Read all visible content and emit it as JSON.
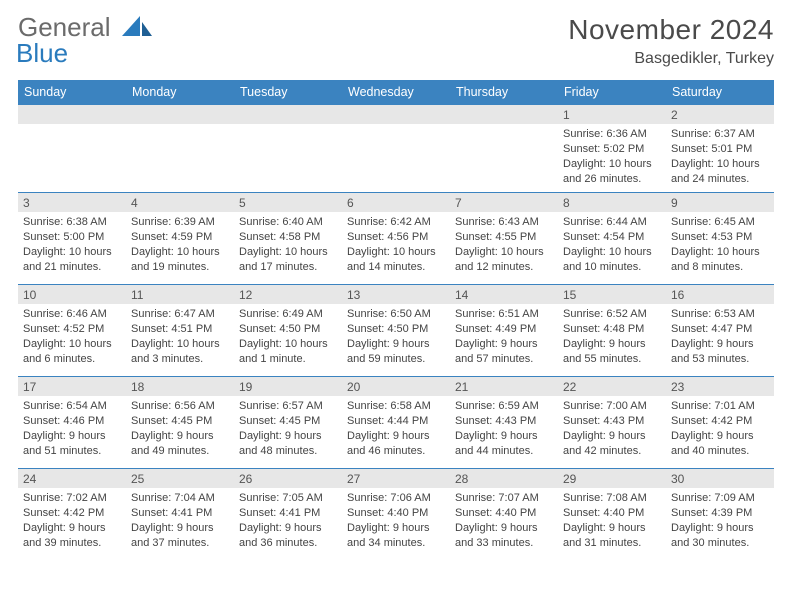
{
  "brand": {
    "word1": "General",
    "word2": "Blue"
  },
  "title": "November 2024",
  "location": "Basgedikler, Turkey",
  "colors": {
    "header_bar": "#3b83c0",
    "daynum_bg": "#e7e7e7",
    "rule": "#3b83c0",
    "text": "#444444",
    "title_text": "#4a4a4a",
    "brand_gray": "#6b6b6b",
    "brand_blue": "#2a7bbd"
  },
  "day_names": [
    "Sunday",
    "Monday",
    "Tuesday",
    "Wednesday",
    "Thursday",
    "Friday",
    "Saturday"
  ],
  "weeks": [
    [
      null,
      null,
      null,
      null,
      null,
      {
        "n": "1",
        "sr": "Sunrise: 6:36 AM",
        "ss": "Sunset: 5:02 PM",
        "dl": "Daylight: 10 hours and 26 minutes."
      },
      {
        "n": "2",
        "sr": "Sunrise: 6:37 AM",
        "ss": "Sunset: 5:01 PM",
        "dl": "Daylight: 10 hours and 24 minutes."
      }
    ],
    [
      {
        "n": "3",
        "sr": "Sunrise: 6:38 AM",
        "ss": "Sunset: 5:00 PM",
        "dl": "Daylight: 10 hours and 21 minutes."
      },
      {
        "n": "4",
        "sr": "Sunrise: 6:39 AM",
        "ss": "Sunset: 4:59 PM",
        "dl": "Daylight: 10 hours and 19 minutes."
      },
      {
        "n": "5",
        "sr": "Sunrise: 6:40 AM",
        "ss": "Sunset: 4:58 PM",
        "dl": "Daylight: 10 hours and 17 minutes."
      },
      {
        "n": "6",
        "sr": "Sunrise: 6:42 AM",
        "ss": "Sunset: 4:56 PM",
        "dl": "Daylight: 10 hours and 14 minutes."
      },
      {
        "n": "7",
        "sr": "Sunrise: 6:43 AM",
        "ss": "Sunset: 4:55 PM",
        "dl": "Daylight: 10 hours and 12 minutes."
      },
      {
        "n": "8",
        "sr": "Sunrise: 6:44 AM",
        "ss": "Sunset: 4:54 PM",
        "dl": "Daylight: 10 hours and 10 minutes."
      },
      {
        "n": "9",
        "sr": "Sunrise: 6:45 AM",
        "ss": "Sunset: 4:53 PM",
        "dl": "Daylight: 10 hours and 8 minutes."
      }
    ],
    [
      {
        "n": "10",
        "sr": "Sunrise: 6:46 AM",
        "ss": "Sunset: 4:52 PM",
        "dl": "Daylight: 10 hours and 6 minutes."
      },
      {
        "n": "11",
        "sr": "Sunrise: 6:47 AM",
        "ss": "Sunset: 4:51 PM",
        "dl": "Daylight: 10 hours and 3 minutes."
      },
      {
        "n": "12",
        "sr": "Sunrise: 6:49 AM",
        "ss": "Sunset: 4:50 PM",
        "dl": "Daylight: 10 hours and 1 minute."
      },
      {
        "n": "13",
        "sr": "Sunrise: 6:50 AM",
        "ss": "Sunset: 4:50 PM",
        "dl": "Daylight: 9 hours and 59 minutes."
      },
      {
        "n": "14",
        "sr": "Sunrise: 6:51 AM",
        "ss": "Sunset: 4:49 PM",
        "dl": "Daylight: 9 hours and 57 minutes."
      },
      {
        "n": "15",
        "sr": "Sunrise: 6:52 AM",
        "ss": "Sunset: 4:48 PM",
        "dl": "Daylight: 9 hours and 55 minutes."
      },
      {
        "n": "16",
        "sr": "Sunrise: 6:53 AM",
        "ss": "Sunset: 4:47 PM",
        "dl": "Daylight: 9 hours and 53 minutes."
      }
    ],
    [
      {
        "n": "17",
        "sr": "Sunrise: 6:54 AM",
        "ss": "Sunset: 4:46 PM",
        "dl": "Daylight: 9 hours and 51 minutes."
      },
      {
        "n": "18",
        "sr": "Sunrise: 6:56 AM",
        "ss": "Sunset: 4:45 PM",
        "dl": "Daylight: 9 hours and 49 minutes."
      },
      {
        "n": "19",
        "sr": "Sunrise: 6:57 AM",
        "ss": "Sunset: 4:45 PM",
        "dl": "Daylight: 9 hours and 48 minutes."
      },
      {
        "n": "20",
        "sr": "Sunrise: 6:58 AM",
        "ss": "Sunset: 4:44 PM",
        "dl": "Daylight: 9 hours and 46 minutes."
      },
      {
        "n": "21",
        "sr": "Sunrise: 6:59 AM",
        "ss": "Sunset: 4:43 PM",
        "dl": "Daylight: 9 hours and 44 minutes."
      },
      {
        "n": "22",
        "sr": "Sunrise: 7:00 AM",
        "ss": "Sunset: 4:43 PM",
        "dl": "Daylight: 9 hours and 42 minutes."
      },
      {
        "n": "23",
        "sr": "Sunrise: 7:01 AM",
        "ss": "Sunset: 4:42 PM",
        "dl": "Daylight: 9 hours and 40 minutes."
      }
    ],
    [
      {
        "n": "24",
        "sr": "Sunrise: 7:02 AM",
        "ss": "Sunset: 4:42 PM",
        "dl": "Daylight: 9 hours and 39 minutes."
      },
      {
        "n": "25",
        "sr": "Sunrise: 7:04 AM",
        "ss": "Sunset: 4:41 PM",
        "dl": "Daylight: 9 hours and 37 minutes."
      },
      {
        "n": "26",
        "sr": "Sunrise: 7:05 AM",
        "ss": "Sunset: 4:41 PM",
        "dl": "Daylight: 9 hours and 36 minutes."
      },
      {
        "n": "27",
        "sr": "Sunrise: 7:06 AM",
        "ss": "Sunset: 4:40 PM",
        "dl": "Daylight: 9 hours and 34 minutes."
      },
      {
        "n": "28",
        "sr": "Sunrise: 7:07 AM",
        "ss": "Sunset: 4:40 PM",
        "dl": "Daylight: 9 hours and 33 minutes."
      },
      {
        "n": "29",
        "sr": "Sunrise: 7:08 AM",
        "ss": "Sunset: 4:40 PM",
        "dl": "Daylight: 9 hours and 31 minutes."
      },
      {
        "n": "30",
        "sr": "Sunrise: 7:09 AM",
        "ss": "Sunset: 4:39 PM",
        "dl": "Daylight: 9 hours and 30 minutes."
      }
    ]
  ]
}
